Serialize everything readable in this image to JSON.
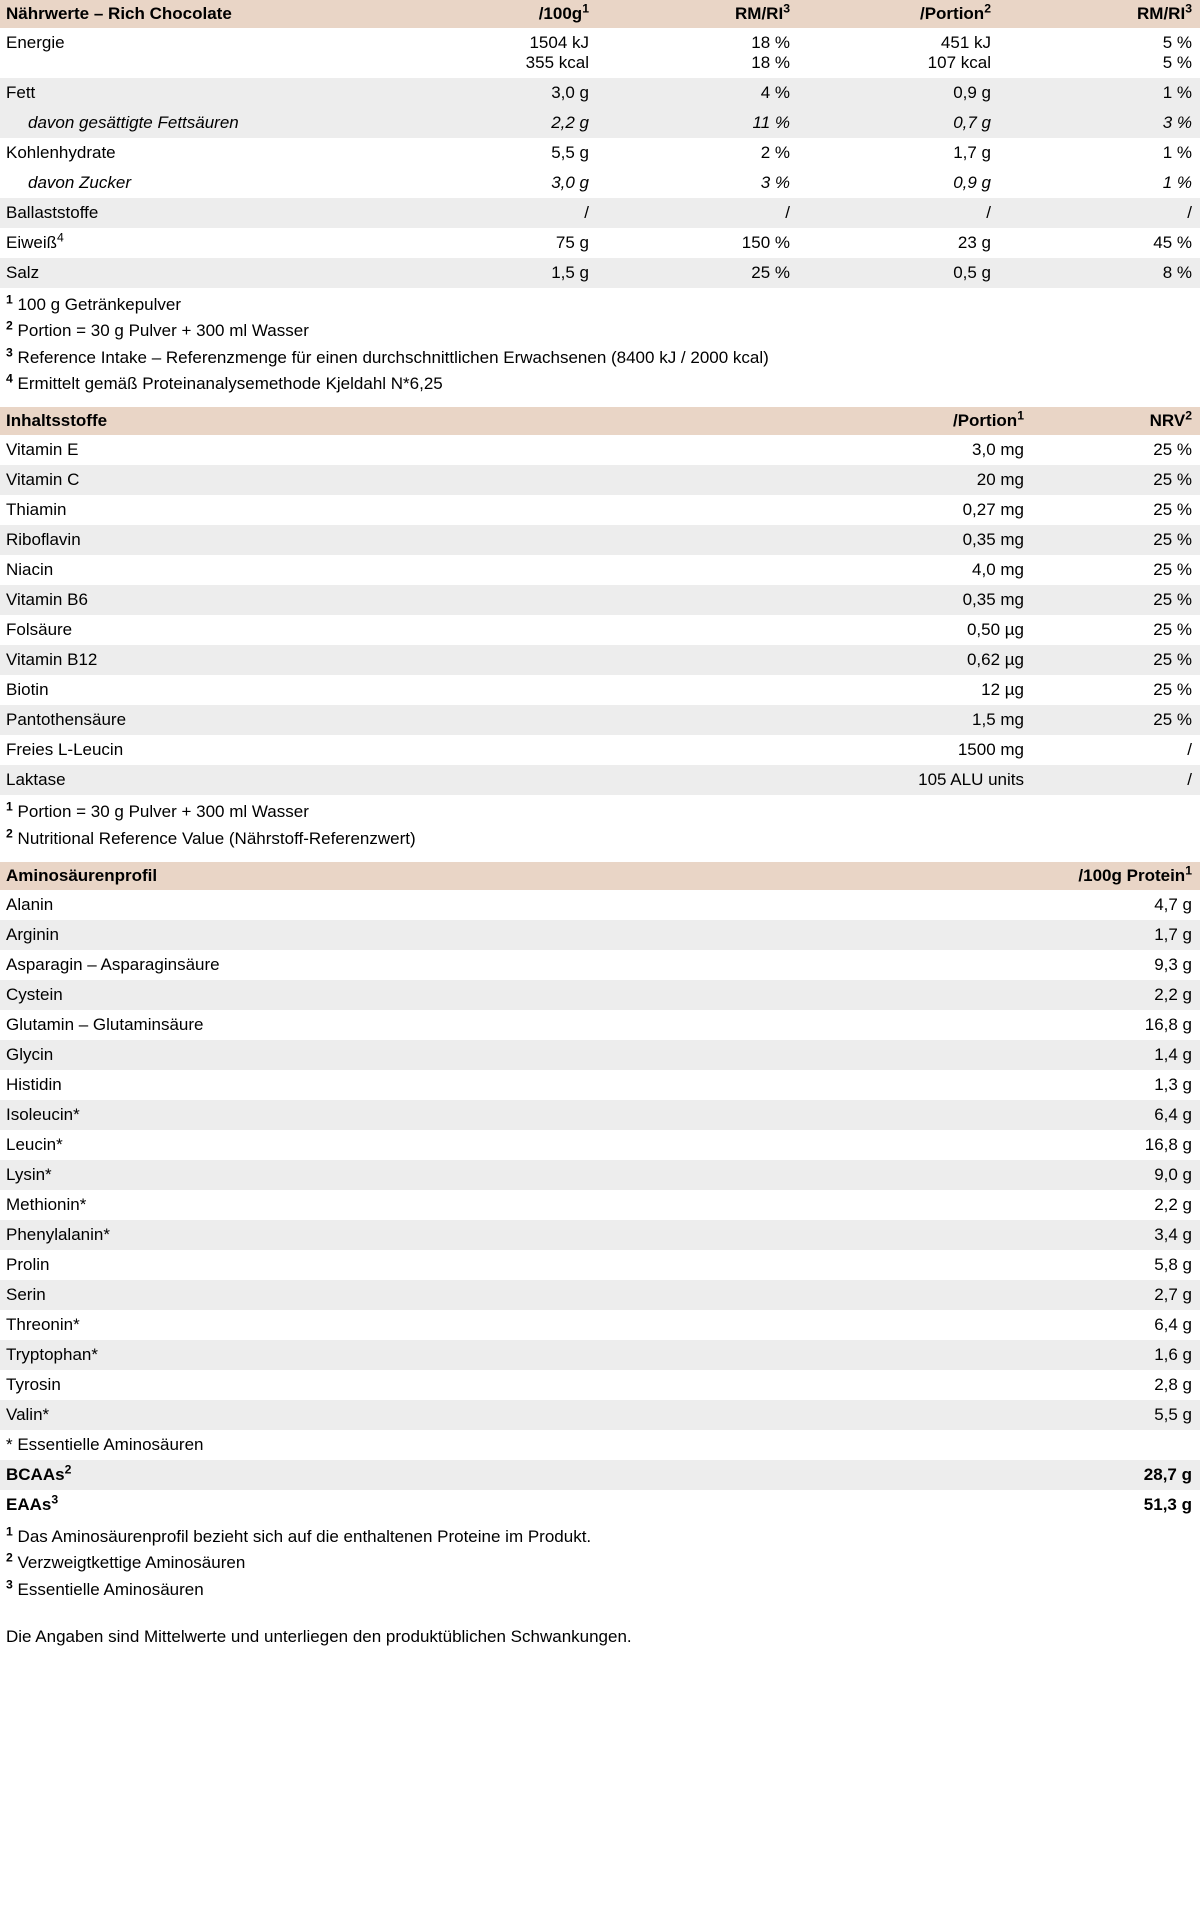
{
  "colors": {
    "header_bg": "#e9d5c6",
    "stripe_bg": "#ededed",
    "text": "#000000",
    "page_bg": "#ffffff"
  },
  "typography": {
    "base_font_size_pt": 13,
    "font_family": "Helvetica, Arial, sans-serif"
  },
  "nutrition": {
    "title": "Nährwerte – Rich Chocolate",
    "headers": {
      "per100g": "/100g",
      "per100g_sup": "1",
      "rm_ri1": "RM/RI",
      "rm_ri1_sup": "3",
      "portion": "/Portion",
      "portion_sup": "2",
      "rm_ri2": "RM/RI",
      "rm_ri2_sup": "3"
    },
    "rows": [
      {
        "stripe": false,
        "label": "Energie",
        "sup": "",
        "indent": false,
        "v1": "1504 kJ<br>355 kcal",
        "v2": "18 %<br>18 %",
        "v3": "451 kJ<br>107 kcal",
        "v4": "5 %<br>5 %"
      },
      {
        "stripe": true,
        "label": "Fett",
        "sup": "",
        "indent": false,
        "v1": "3,0 g",
        "v2": "4 %",
        "v3": "0,9 g",
        "v4": "1 %"
      },
      {
        "stripe": true,
        "label": "davon gesättigte Fettsäuren",
        "sup": "",
        "indent": true,
        "ital": true,
        "v1": "2,2 g",
        "v2": "11 %",
        "v3": "0,7 g",
        "v4": "3 %"
      },
      {
        "stripe": false,
        "label": "Kohlenhydrate",
        "sup": "",
        "indent": false,
        "v1": "5,5 g",
        "v2": "2 %",
        "v3": "1,7 g",
        "v4": "1 %"
      },
      {
        "stripe": false,
        "label": "davon Zucker",
        "sup": "",
        "indent": true,
        "ital": true,
        "v1": "3,0 g",
        "v2": "3 %",
        "v3": "0,9 g",
        "v4": "1 %"
      },
      {
        "stripe": true,
        "label": "Ballaststoffe",
        "sup": "",
        "indent": false,
        "v1": "/",
        "v2": "/",
        "v3": "/",
        "v4": "/"
      },
      {
        "stripe": false,
        "label": "Eiweiß",
        "sup": "4",
        "indent": false,
        "v1": "75 g",
        "v2": "150 %",
        "v3": "23 g",
        "v4": "45 %"
      },
      {
        "stripe": true,
        "label": "Salz",
        "sup": "",
        "indent": false,
        "v1": "1,5 g",
        "v2": "25 %",
        "v3": "0,5 g",
        "v4": "8 %"
      }
    ],
    "footnotes": [
      {
        "sup": "1",
        "text": "100 g Getränkepulver"
      },
      {
        "sup": "2",
        "text": "Portion = 30 g Pulver + 300 ml Wasser"
      },
      {
        "sup": "3",
        "text": "Reference Intake – Referenzmenge für einen durchschnittlichen Erwachsenen (8400 kJ / 2000 kcal)"
      },
      {
        "sup": "4",
        "text": "Ermittelt gemäß Proteinanalysemethode Kjeldahl N*6,25"
      }
    ]
  },
  "ingredients": {
    "title": "Inhaltsstoffe",
    "headers": {
      "portion": "/Portion",
      "portion_sup": "1",
      "nrv": "NRV",
      "nrv_sup": "2"
    },
    "rows": [
      {
        "stripe": false,
        "label": "Vitamin E",
        "v1": "3,0 mg",
        "v2": "25 %"
      },
      {
        "stripe": true,
        "label": "Vitamin C",
        "v1": "20 mg",
        "v2": "25 %"
      },
      {
        "stripe": false,
        "label": "Thiamin",
        "v1": "0,27 mg",
        "v2": "25 %"
      },
      {
        "stripe": true,
        "label": "Riboflavin",
        "v1": "0,35 mg",
        "v2": "25 %"
      },
      {
        "stripe": false,
        "label": "Niacin",
        "v1": "4,0 mg",
        "v2": "25 %"
      },
      {
        "stripe": true,
        "label": "Vitamin B6",
        "v1": "0,35 mg",
        "v2": "25 %"
      },
      {
        "stripe": false,
        "label": "Folsäure",
        "v1": "0,50 µg",
        "v2": "25 %"
      },
      {
        "stripe": true,
        "label": "Vitamin B12",
        "v1": "0,62 µg",
        "v2": "25 %"
      },
      {
        "stripe": false,
        "label": "Biotin",
        "v1": "12 µg",
        "v2": "25 %"
      },
      {
        "stripe": true,
        "label": "Pantothensäure",
        "v1": "1,5 mg",
        "v2": "25 %"
      },
      {
        "stripe": false,
        "label": "Freies L-Leucin",
        "v1": "1500 mg",
        "v2": "/"
      },
      {
        "stripe": true,
        "label": "Laktase",
        "v1": "105 ALU units",
        "v2": "/"
      }
    ],
    "footnotes": [
      {
        "sup": "1",
        "text": "Portion = 30 g Pulver + 300 ml Wasser"
      },
      {
        "sup": "2",
        "text": "Nutritional Reference Value (Nährstoff-Referenzwert)"
      }
    ]
  },
  "amino": {
    "title": "Aminosäurenprofil",
    "header_val": "/100g Protein",
    "header_val_sup": "1",
    "rows": [
      {
        "stripe": false,
        "label": "Alanin",
        "v": "4,7 g"
      },
      {
        "stripe": true,
        "label": "Arginin",
        "v": "1,7 g"
      },
      {
        "stripe": false,
        "label": "Asparagin – Asparaginsäure",
        "v": "9,3 g"
      },
      {
        "stripe": true,
        "label": "Cystein",
        "v": "2,2 g"
      },
      {
        "stripe": false,
        "label": "Glutamin – Glutaminsäure",
        "v": "16,8 g"
      },
      {
        "stripe": true,
        "label": "Glycin",
        "v": "1,4 g"
      },
      {
        "stripe": false,
        "label": "Histidin",
        "v": "1,3 g"
      },
      {
        "stripe": true,
        "label": "Isoleucin*",
        "v": "6,4 g"
      },
      {
        "stripe": false,
        "label": "Leucin*",
        "v": "16,8 g"
      },
      {
        "stripe": true,
        "label": "Lysin*",
        "v": "9,0 g"
      },
      {
        "stripe": false,
        "label": "Methionin*",
        "v": "2,2 g"
      },
      {
        "stripe": true,
        "label": "Phenylalanin*",
        "v": "3,4 g"
      },
      {
        "stripe": false,
        "label": "Prolin",
        "v": "5,8 g"
      },
      {
        "stripe": true,
        "label": "Serin",
        "v": "2,7 g"
      },
      {
        "stripe": false,
        "label": "Threonin*",
        "v": "6,4 g"
      },
      {
        "stripe": true,
        "label": "Tryptophan*",
        "v": "1,6 g"
      },
      {
        "stripe": false,
        "label": "Tyrosin",
        "v": "2,8 g"
      },
      {
        "stripe": true,
        "label": "Valin*",
        "v": "5,5 g"
      }
    ],
    "essential_note": "* Essentielle Aminosäuren",
    "summary": [
      {
        "label": "BCAAs",
        "sup": "2",
        "v": "28,7 g",
        "stripe": true
      },
      {
        "label": "EAAs",
        "sup": "3",
        "v": "51,3 g",
        "stripe": false
      }
    ],
    "footnotes": [
      {
        "sup": "1",
        "text": "Das Aminosäurenprofil bezieht sich auf die enthaltenen Proteine im Produkt."
      },
      {
        "sup": "2",
        "text": "Verzweigtkettige Aminosäuren"
      },
      {
        "sup": "3",
        "text": "Essentielle Aminosäuren"
      }
    ]
  },
  "disclaimer": "Die Angaben sind Mittelwerte und unterliegen den produktüblichen Schwankungen."
}
